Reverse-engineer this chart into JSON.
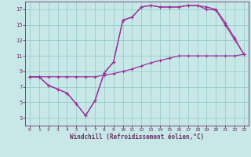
{
  "bg_color": "#c8e8e8",
  "line_color": "#993399",
  "grid_color": "#99cccc",
  "axis_color": "#663366",
  "xlabel": "Windchill (Refroidissement éolien,°C)",
  "xlim": [
    -0.5,
    23.5
  ],
  "ylim": [
    2.0,
    18.0
  ],
  "xticks": [
    0,
    1,
    2,
    3,
    4,
    5,
    6,
    7,
    8,
    9,
    10,
    11,
    12,
    13,
    14,
    15,
    16,
    17,
    18,
    19,
    20,
    21,
    22,
    23
  ],
  "yticks": [
    3,
    5,
    7,
    9,
    11,
    13,
    15,
    17
  ],
  "line1_x": [
    0,
    1,
    2,
    3,
    4,
    5,
    6,
    7,
    8,
    9,
    10,
    11,
    12,
    13,
    14,
    15,
    16,
    17,
    18,
    19,
    20,
    21,
    22,
    23
  ],
  "line1_y": [
    8.3,
    8.3,
    8.3,
    8.3,
    8.3,
    8.3,
    8.3,
    8.3,
    8.5,
    8.7,
    9.0,
    9.3,
    9.7,
    10.1,
    10.4,
    10.7,
    11.0,
    11.0,
    11.0,
    11.0,
    11.0,
    11.0,
    11.0,
    11.2
  ],
  "line2_x": [
    0,
    1,
    2,
    3,
    4,
    5,
    6,
    7,
    8,
    9,
    10,
    11,
    12,
    13,
    14,
    15,
    16,
    17,
    18,
    19,
    20,
    21,
    22,
    23
  ],
  "line2_y": [
    8.3,
    8.3,
    7.2,
    6.7,
    6.2,
    4.8,
    3.3,
    5.2,
    8.8,
    10.2,
    15.6,
    16.0,
    17.3,
    17.5,
    17.3,
    17.3,
    17.3,
    17.5,
    17.5,
    17.3,
    17.0,
    15.3,
    13.3,
    11.2
  ],
  "line3_x": [
    0,
    1,
    2,
    3,
    4,
    5,
    6,
    7,
    8,
    9,
    10,
    11,
    12,
    13,
    14,
    15,
    16,
    17,
    18,
    19,
    20,
    21,
    22,
    23
  ],
  "line3_y": [
    8.3,
    8.3,
    7.2,
    6.7,
    6.2,
    4.8,
    3.3,
    5.2,
    8.8,
    10.2,
    15.6,
    16.0,
    17.3,
    17.5,
    17.3,
    17.3,
    17.3,
    17.5,
    17.5,
    17.0,
    16.9,
    15.0,
    13.1,
    11.2
  ]
}
